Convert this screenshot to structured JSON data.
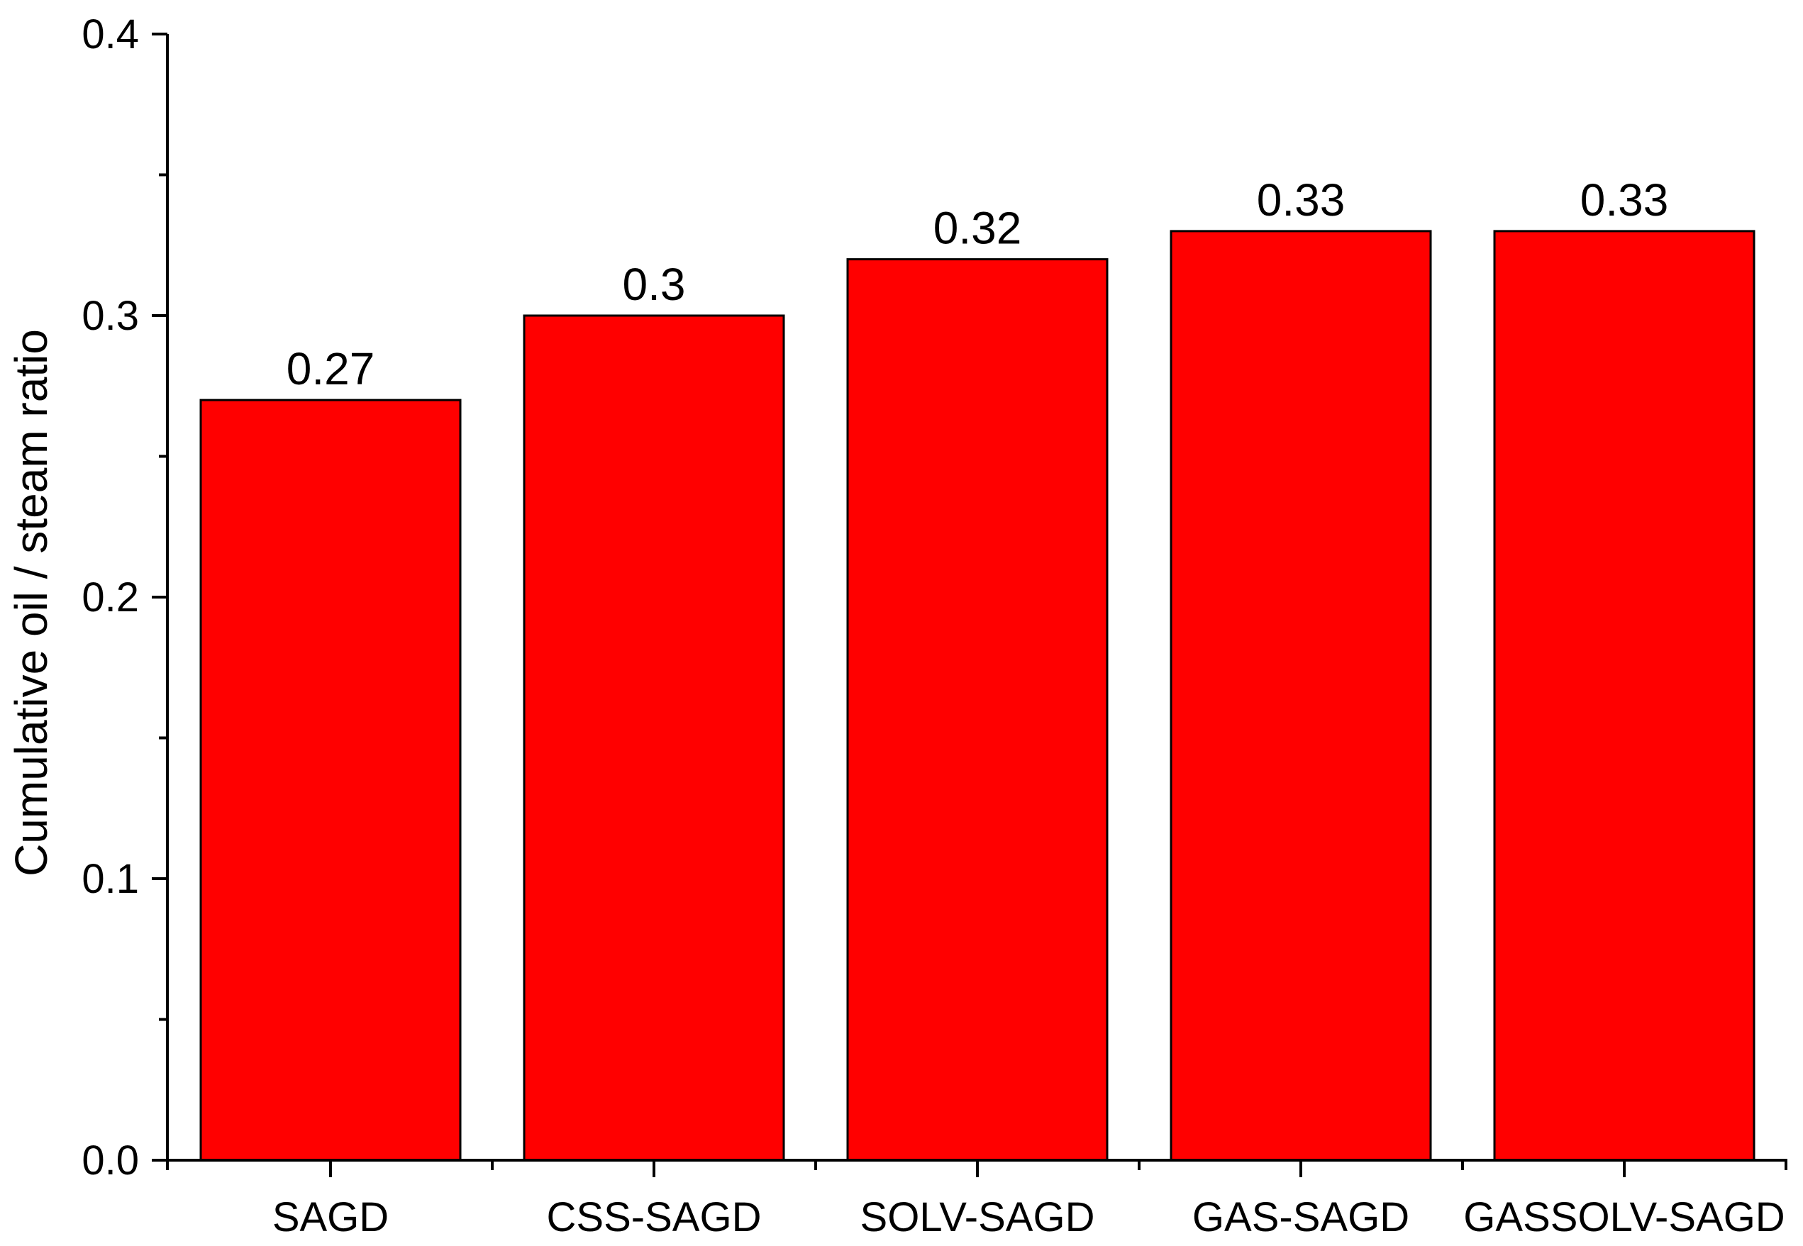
{
  "chart_data": {
    "type": "bar",
    "title": "",
    "xlabel": "",
    "ylabel": "Cumulative oil / steam ratio",
    "categories": [
      "SAGD",
      "CSS-SAGD",
      "SOLV-SAGD",
      "GAS-SAGD",
      "GASSOLV-SAGD"
    ],
    "values": [
      0.27,
      0.3,
      0.32,
      0.33,
      0.33
    ],
    "value_labels": [
      "0.27",
      "0.3",
      "0.32",
      "0.33",
      "0.33"
    ],
    "ylim": [
      0,
      0.4
    ],
    "y_ticks": [
      {
        "value": 0.0,
        "label": "0.0"
      },
      {
        "value": 0.1,
        "label": "0.1"
      },
      {
        "value": 0.2,
        "label": "0.2"
      },
      {
        "value": 0.3,
        "label": "0.3"
      },
      {
        "value": 0.4,
        "label": "0.4"
      }
    ],
    "bar_color": "#ff0000",
    "bar_edge_color": "#000000",
    "grid": false,
    "legend": "none"
  }
}
